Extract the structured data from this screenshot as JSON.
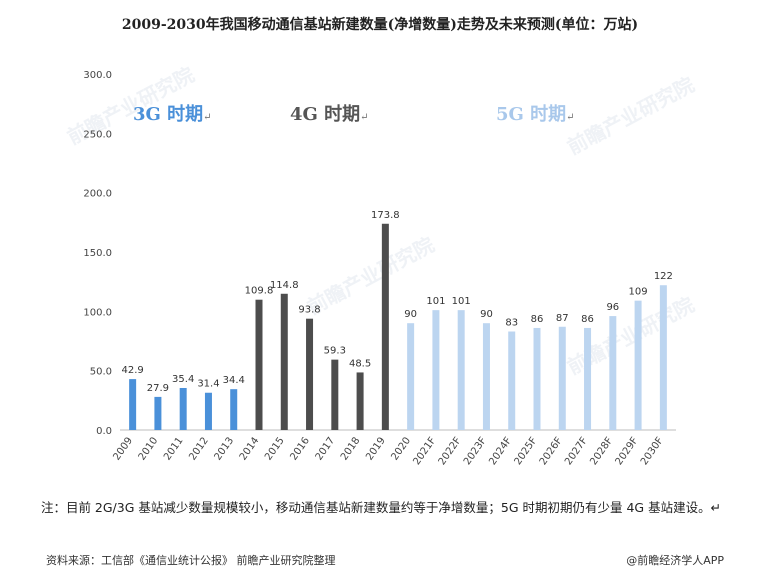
{
  "title": "2009-2030年我国移动通信基站新建数量(净增数量)走势及未来预测(单位：万站)",
  "periods": {
    "g3": "3G 时期",
    "g4": "4G 时期",
    "g5": "5G 时期",
    "mark": "↵"
  },
  "watermark": "前瞻产业研究院",
  "note": "注：目前 2G/3G 基站减少数量规模较小，移动通信基站新建数量约等于净增数量；5G 时期初期仍有少量 4G 基站建设。↵",
  "source": "资料来源：工信部《通信业统计公报》 前瞻产业研究院整理",
  "credit": "@前瞻经济学人APP",
  "chart_data": {
    "type": "bar",
    "title": "2009-2030年我国移动通信基站新建数量(净增数量)走势及未来预测(单位：万站)",
    "categories": [
      "2009",
      "2010",
      "2011",
      "2012",
      "2013",
      "2014",
      "2015",
      "2016",
      "2017",
      "2018",
      "2019",
      "2020",
      "2021F",
      "2022F",
      "2023F",
      "2024F",
      "2025F",
      "2026F",
      "2027F",
      "2028F",
      "2029F",
      "2030F"
    ],
    "values": [
      42.9,
      27.9,
      35.4,
      31.4,
      34.4,
      109.8,
      114.8,
      93.8,
      59.3,
      48.5,
      173.8,
      90,
      101,
      101,
      90,
      83,
      86,
      87,
      86,
      96,
      109,
      122
    ],
    "labels": [
      "42.9",
      "27.9",
      "35.4",
      "31.4",
      "34.4",
      "109.8",
      "114.8",
      "93.8",
      "59.3",
      "48.5",
      "173.8",
      "90",
      "101",
      "101",
      "90",
      "83",
      "86",
      "87",
      "86",
      "96",
      "109",
      "122"
    ],
    "yticks": [
      "0.0",
      "50.0",
      "100.0",
      "150.0",
      "200.0",
      "250.0",
      "300.0"
    ],
    "ylim": [
      0,
      300
    ],
    "xlabel": "",
    "ylabel": "",
    "grid": false,
    "colors": {
      "3G": "#4a90d9",
      "4G": "#4d4d4d",
      "5G": "#bcd5f0"
    },
    "period_of_category": [
      "3G",
      "3G",
      "3G",
      "3G",
      "3G",
      "4G",
      "4G",
      "4G",
      "4G",
      "4G",
      "4G",
      "5G",
      "5G",
      "5G",
      "5G",
      "5G",
      "5G",
      "5G",
      "5G",
      "5G",
      "5G",
      "5G"
    ]
  }
}
